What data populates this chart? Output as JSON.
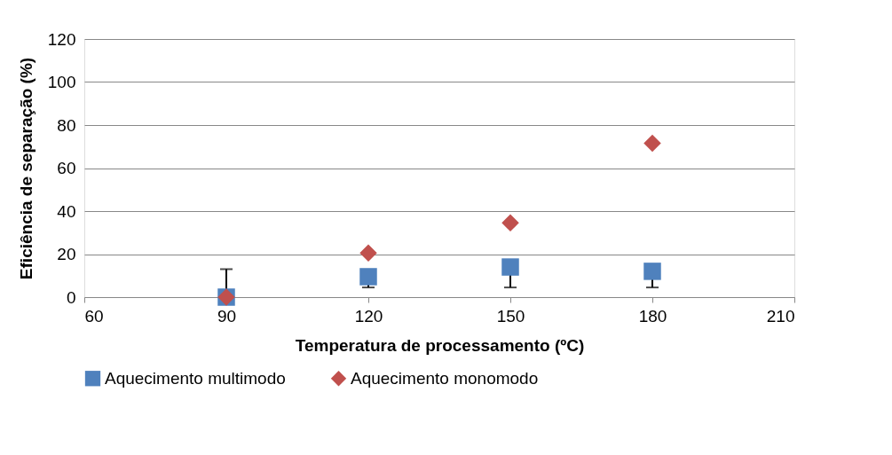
{
  "chart_data": {
    "type": "scatter",
    "xlabel": "Temperatura de processamento (ºC)",
    "ylabel": "Eficiência de separação (%)",
    "x": [
      90,
      120,
      150,
      180
    ],
    "series": [
      {
        "name": "Aquecimento multimodo",
        "color": "#4f81bd",
        "marker": "square",
        "values": [
          0,
          9.5,
          14,
          12
        ],
        "errors": [
          [
            0,
            13
          ],
          [
            4.5,
            9.5
          ],
          [
            4.5,
            14
          ],
          [
            4.5,
            12
          ]
        ]
      },
      {
        "name": "Aquecimento monomodo",
        "color": "#c0504d",
        "marker": "diamond",
        "values": [
          0,
          20.5,
          34.5,
          71.5
        ]
      }
    ],
    "xlim": [
      60,
      210
    ],
    "xticks": [
      60,
      90,
      120,
      150,
      180,
      210
    ],
    "ylim": [
      0,
      120
    ],
    "yticks": [
      0,
      20,
      40,
      60,
      80,
      100,
      120
    ],
    "grid": "y",
    "legend": "bottom"
  }
}
